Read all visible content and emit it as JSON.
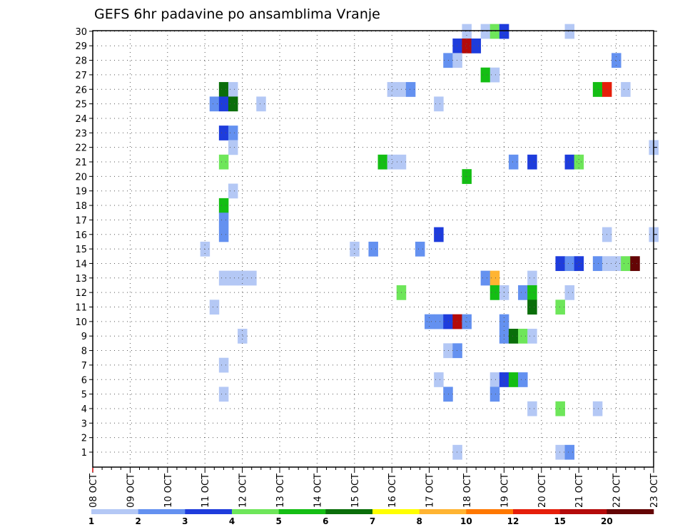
{
  "chart_data": {
    "type": "heatmap",
    "title": "GEFS 6hr padavine po ansamblima Vranje",
    "xlabel": "",
    "ylabel": "",
    "x_ticks": [
      "08 OCT",
      "09 OCT",
      "10 OCT",
      "11 OCT",
      "12 OCT",
      "13 OCT",
      "14 OCT",
      "15 OCT",
      "16 OCT",
      "17 OCT",
      "18 OCT",
      "19 OCT",
      "20 OCT",
      "21 OCT",
      "22 OCT",
      "23 OCT"
    ],
    "y_ticks": [
      "1",
      "2",
      "3",
      "4",
      "5",
      "6",
      "7",
      "8",
      "9",
      "10",
      "11",
      "12",
      "13",
      "14",
      "15",
      "16",
      "17",
      "18",
      "19",
      "20",
      "21",
      "22",
      "23",
      "24",
      "25",
      "26",
      "27",
      "28",
      "29",
      "30"
    ],
    "grid": true,
    "x_units": "6-hour steps from 08 OCT 00Z",
    "colorbar": {
      "position": "bottom",
      "labels": [
        "1",
        "2",
        "3",
        "4",
        "5",
        "6",
        "7",
        "8",
        "10",
        "12",
        "15",
        "20"
      ],
      "colors": [
        "#b4c8f5",
        "#6491f0",
        "#1e3cdc",
        "#6ee65a",
        "#14be14",
        "#0a6e0a",
        "#ffff00",
        "#ffb432",
        "#ff7800",
        "#e61e0a",
        "#b40a0a",
        "#640505"
      ]
    },
    "cells": [
      {
        "t": 14,
        "m": 26,
        "level": 6
      },
      {
        "t": 15,
        "m": 26,
        "level": 1
      },
      {
        "t": 13,
        "m": 25,
        "level": 2
      },
      {
        "t": 14,
        "m": 25,
        "level": 3
      },
      {
        "t": 15,
        "m": 25,
        "level": 6
      },
      {
        "t": 18,
        "m": 25,
        "level": 1
      },
      {
        "t": 14,
        "m": 23,
        "level": 3
      },
      {
        "t": 15,
        "m": 23,
        "level": 2
      },
      {
        "t": 15,
        "m": 22,
        "level": 1
      },
      {
        "t": 14,
        "m": 21,
        "level": 4
      },
      {
        "t": 15,
        "m": 19,
        "level": 1
      },
      {
        "t": 14,
        "m": 18,
        "level": 5
      },
      {
        "t": 14,
        "m": 17,
        "level": 2
      },
      {
        "t": 14,
        "m": 16,
        "level": 2
      },
      {
        "t": 12,
        "m": 15,
        "level": 1
      },
      {
        "t": 14,
        "m": 13,
        "level": 1
      },
      {
        "t": 15,
        "m": 13,
        "level": 1
      },
      {
        "t": 16,
        "m": 13,
        "level": 1
      },
      {
        "t": 17,
        "m": 13,
        "level": 1
      },
      {
        "t": 13,
        "m": 11,
        "level": 1
      },
      {
        "t": 16,
        "m": 9,
        "level": 1
      },
      {
        "t": 14,
        "m": 7,
        "level": 1
      },
      {
        "t": 14,
        "m": 5,
        "level": 1
      },
      {
        "t": 40,
        "m": 30,
        "level": 1
      },
      {
        "t": 42,
        "m": 30,
        "level": 1
      },
      {
        "t": 43,
        "m": 30,
        "level": 4
      },
      {
        "t": 44,
        "m": 30,
        "level": 3
      },
      {
        "t": 51,
        "m": 30,
        "level": 1
      },
      {
        "t": 39,
        "m": 29,
        "level": 3
      },
      {
        "t": 40,
        "m": 29,
        "level": 11
      },
      {
        "t": 41,
        "m": 29,
        "level": 3
      },
      {
        "t": 38,
        "m": 28,
        "level": 2
      },
      {
        "t": 39,
        "m": 28,
        "level": 1
      },
      {
        "t": 56,
        "m": 28,
        "level": 2
      },
      {
        "t": 42,
        "m": 27,
        "level": 5
      },
      {
        "t": 43,
        "m": 27,
        "level": 1
      },
      {
        "t": 32,
        "m": 26,
        "level": 1
      },
      {
        "t": 33,
        "m": 26,
        "level": 1
      },
      {
        "t": 34,
        "m": 26,
        "level": 2
      },
      {
        "t": 54,
        "m": 26,
        "level": 5
      },
      {
        "t": 55,
        "m": 26,
        "level": 10
      },
      {
        "t": 57,
        "m": 26,
        "level": 1
      },
      {
        "t": 37,
        "m": 25,
        "level": 1
      },
      {
        "t": 60,
        "m": 22,
        "level": 1
      },
      {
        "t": 31,
        "m": 21,
        "level": 5
      },
      {
        "t": 32,
        "m": 21,
        "level": 1
      },
      {
        "t": 33,
        "m": 21,
        "level": 1
      },
      {
        "t": 45,
        "m": 21,
        "level": 2
      },
      {
        "t": 47,
        "m": 21,
        "level": 3
      },
      {
        "t": 51,
        "m": 21,
        "level": 3
      },
      {
        "t": 52,
        "m": 21,
        "level": 4
      },
      {
        "t": 40,
        "m": 20,
        "level": 5
      },
      {
        "t": 37,
        "m": 16,
        "level": 3
      },
      {
        "t": 55,
        "m": 16,
        "level": 1
      },
      {
        "t": 60,
        "m": 16,
        "level": 1
      },
      {
        "t": 28,
        "m": 15,
        "level": 1
      },
      {
        "t": 30,
        "m": 15,
        "level": 2
      },
      {
        "t": 35,
        "m": 15,
        "level": 2
      },
      {
        "t": 50,
        "m": 14,
        "level": 3
      },
      {
        "t": 51,
        "m": 14,
        "level": 2
      },
      {
        "t": 52,
        "m": 14,
        "level": 3
      },
      {
        "t": 54,
        "m": 14,
        "level": 2
      },
      {
        "t": 55,
        "m": 14,
        "level": 1
      },
      {
        "t": 56,
        "m": 14,
        "level": 1
      },
      {
        "t": 57,
        "m": 14,
        "level": 4
      },
      {
        "t": 58,
        "m": 14,
        "level": 12
      },
      {
        "t": 42,
        "m": 13,
        "level": 2
      },
      {
        "t": 43,
        "m": 13,
        "level": 8
      },
      {
        "t": 47,
        "m": 13,
        "level": 1
      },
      {
        "t": 33,
        "m": 12,
        "level": 4
      },
      {
        "t": 43,
        "m": 12,
        "level": 5
      },
      {
        "t": 44,
        "m": 12,
        "level": 1
      },
      {
        "t": 46,
        "m": 12,
        "level": 2
      },
      {
        "t": 47,
        "m": 12,
        "level": 5
      },
      {
        "t": 51,
        "m": 12,
        "level": 1
      },
      {
        "t": 47,
        "m": 11,
        "level": 6
      },
      {
        "t": 50,
        "m": 11,
        "level": 4
      },
      {
        "t": 36,
        "m": 10,
        "level": 2
      },
      {
        "t": 37,
        "m": 10,
        "level": 2
      },
      {
        "t": 38,
        "m": 10,
        "level": 3
      },
      {
        "t": 39,
        "m": 10,
        "level": 11
      },
      {
        "t": 40,
        "m": 10,
        "level": 2
      },
      {
        "t": 44,
        "m": 10,
        "level": 2
      },
      {
        "t": 44,
        "m": 9,
        "level": 2
      },
      {
        "t": 45,
        "m": 9,
        "level": 6
      },
      {
        "t": 46,
        "m": 9,
        "level": 4
      },
      {
        "t": 47,
        "m": 9,
        "level": 1
      },
      {
        "t": 38,
        "m": 8,
        "level": 1
      },
      {
        "t": 39,
        "m": 8,
        "level": 2
      },
      {
        "t": 37,
        "m": 6,
        "level": 1
      },
      {
        "t": 43,
        "m": 6,
        "level": 1
      },
      {
        "t": 44,
        "m": 6,
        "level": 3
      },
      {
        "t": 45,
        "m": 6,
        "level": 5
      },
      {
        "t": 46,
        "m": 6,
        "level": 2
      },
      {
        "t": 38,
        "m": 5,
        "level": 2
      },
      {
        "t": 43,
        "m": 5,
        "level": 2
      },
      {
        "t": 47,
        "m": 4,
        "level": 1
      },
      {
        "t": 50,
        "m": 4,
        "level": 4
      },
      {
        "t": 54,
        "m": 4,
        "level": 1
      },
      {
        "t": 39,
        "m": 1,
        "level": 1
      },
      {
        "t": 50,
        "m": 1,
        "level": 1
      },
      {
        "t": 51,
        "m": 1,
        "level": 2
      }
    ]
  }
}
